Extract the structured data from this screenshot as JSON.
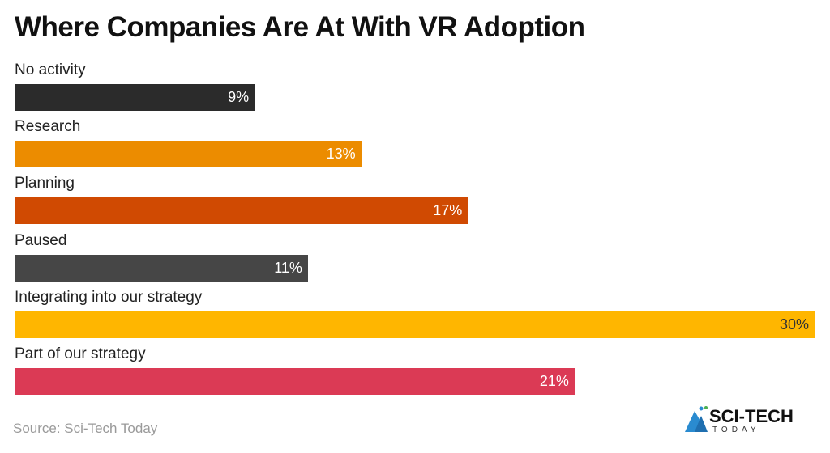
{
  "chart_data": {
    "type": "bar",
    "orientation": "horizontal",
    "title": "Where Companies Are At With VR Adoption",
    "categories": [
      "No activity",
      "Research",
      "Planning",
      "Paused",
      "Integrating into our strategy",
      "Part of our strategy"
    ],
    "values": [
      9,
      13,
      17,
      11,
      30,
      21
    ],
    "value_labels": [
      "9%",
      "13%",
      "17%",
      "11%",
      "30%",
      "21%"
    ],
    "colors": [
      "#2b2b2b",
      "#ec8c00",
      "#d04a02",
      "#464646",
      "#ffb600",
      "#db3a55"
    ],
    "label_colors": [
      "#ffffff",
      "#ffffff",
      "#ffffff",
      "#ffffff",
      "#333333",
      "#ffffff"
    ],
    "xlim": [
      0,
      30
    ],
    "grid": false
  },
  "source": "Source: Sci-Tech Today",
  "logo": {
    "main": "SCI-TECH",
    "sub": "TODAY"
  }
}
